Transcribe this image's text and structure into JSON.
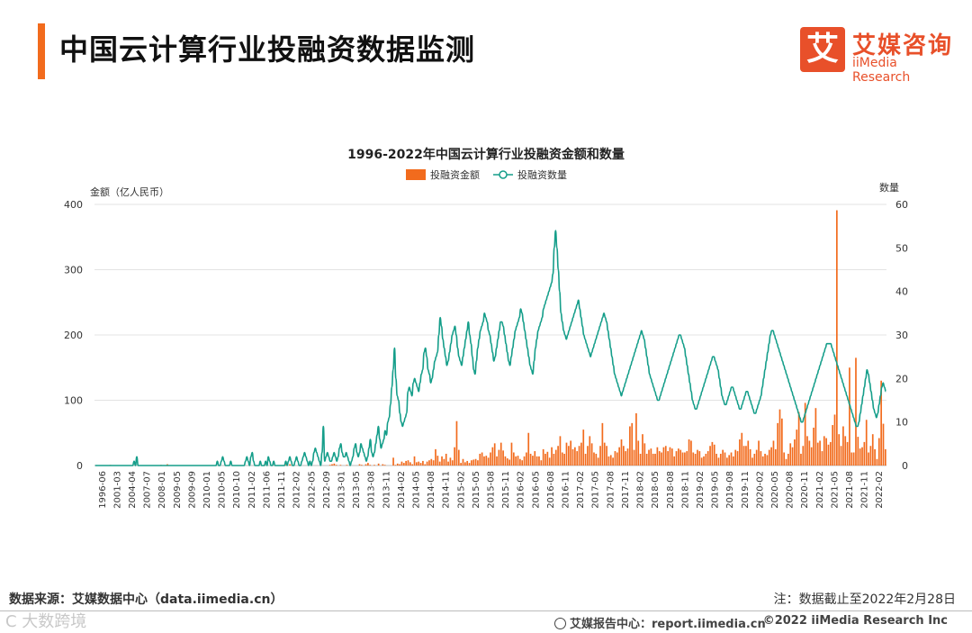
{
  "header": {
    "title": "中国云计算行业投融资数据监测"
  },
  "logo": {
    "mark": "艾",
    "cn": "艾媒咨询",
    "en": "iiMedia Research"
  },
  "colors": {
    "accent": "#f26b1d",
    "bar": "#f26b1d",
    "line": "#159e8a",
    "grid": "#e3e3e3"
  },
  "chart_data": {
    "type": "bar+line",
    "title": "1996-2022年中国云计算行业投融资金额和数量",
    "ylabel_left": "金额（亿人民币）",
    "ylabel_right": "数量",
    "ylim_left": [
      0,
      400
    ],
    "ylim_right": [
      0,
      60
    ],
    "yticks_left": [
      "0",
      "100",
      "200",
      "300",
      "400"
    ],
    "yticks_right": [
      "0",
      "10",
      "20",
      "30",
      "40",
      "50",
      "60"
    ],
    "legend": [
      "投融资金额",
      "投融资数量"
    ],
    "x_tick_labels": [
      "1996-06",
      "2001-03",
      "2004-04",
      "2007-07",
      "2008-01",
      "2009-05",
      "2009-09",
      "2010-01",
      "2010-05",
      "2010-10",
      "2011-02",
      "2011-06",
      "2011-11",
      "2012-02",
      "2012-05",
      "2012-09",
      "2013-01",
      "2013-05",
      "2013-08",
      "2013-11",
      "2014-02",
      "2014-05",
      "2014-08",
      "2014-11",
      "2015-02",
      "2015-05",
      "2015-08",
      "2015-11",
      "2016-02",
      "2016-05",
      "2016-08",
      "2016-11",
      "2017-02",
      "2017-05",
      "2017-08",
      "2017-11",
      "2018-02",
      "2018-05",
      "2018-08",
      "2018-11",
      "2019-02",
      "2019-05",
      "2019-08",
      "2019-11",
      "2020-02",
      "2020-05",
      "2020-08",
      "2020-11",
      "2021-02",
      "2021-05",
      "2021-08",
      "2021-11",
      "2022-02"
    ],
    "series": [
      {
        "name": "投融资金额",
        "axis": "left",
        "values": [
          0,
          0,
          0,
          0,
          0,
          0,
          0,
          1,
          0,
          0,
          0,
          0,
          0,
          0,
          0,
          0,
          0,
          0,
          0,
          0,
          0,
          0,
          0,
          0,
          0,
          0,
          0,
          0,
          0,
          0,
          0,
          1,
          0,
          0,
          2,
          0,
          0,
          0,
          0,
          0,
          0,
          0,
          0,
          0,
          0,
          0,
          0,
          0,
          0,
          0,
          0,
          0,
          0,
          0,
          0,
          0,
          0,
          0,
          0,
          0,
          0,
          0,
          0,
          0,
          0,
          0,
          0,
          0,
          0,
          0,
          0,
          0,
          0,
          0,
          0,
          0,
          0,
          0,
          0,
          0,
          1,
          0,
          0,
          0,
          0,
          0,
          0,
          0,
          0,
          0,
          1,
          0,
          2,
          1,
          0,
          0,
          0,
          0,
          0,
          0,
          0,
          0,
          0,
          0,
          0,
          0,
          0,
          0,
          0,
          0,
          0,
          1,
          2,
          3,
          1,
          0,
          1,
          0,
          0,
          1,
          0,
          0,
          0,
          0,
          0,
          2,
          1,
          0,
          2,
          4,
          1,
          0,
          1,
          0,
          3,
          0,
          2,
          1,
          0,
          0,
          0,
          12,
          1,
          3,
          2,
          6,
          4,
          7,
          8,
          5,
          2,
          14,
          5,
          6,
          4,
          7,
          2,
          6,
          8,
          10,
          8,
          25,
          15,
          6,
          14,
          10,
          18,
          6,
          12,
          8,
          28,
          68,
          24,
          4,
          10,
          5,
          7,
          4,
          8,
          9,
          10,
          8,
          18,
          20,
          14,
          15,
          12,
          20,
          28,
          34,
          14,
          24,
          35,
          23,
          14,
          11,
          9,
          35,
          20,
          14,
          15,
          10,
          8,
          14,
          20,
          50,
          18,
          15,
          22,
          14,
          14,
          8,
          25,
          18,
          21,
          12,
          28,
          18,
          24,
          30,
          45,
          20,
          18,
          35,
          30,
          38,
          25,
          28,
          22,
          30,
          35,
          55,
          18,
          30,
          45,
          34,
          20,
          18,
          12,
          30,
          65,
          35,
          30,
          14,
          16,
          12,
          22,
          20,
          28,
          40,
          30,
          22,
          26,
          60,
          65,
          24,
          80,
          38,
          18,
          48,
          34,
          18,
          24,
          26,
          18,
          18,
          28,
          22,
          20,
          28,
          30,
          22,
          28,
          26,
          14,
          22,
          26,
          24,
          20,
          20,
          22,
          40,
          38,
          20,
          18,
          24,
          22,
          12,
          14,
          18,
          22,
          30,
          36,
          32,
          18,
          12,
          18,
          24,
          20,
          12,
          16,
          20,
          14,
          24,
          22,
          40,
          50,
          30,
          30,
          38,
          25,
          12,
          18,
          24,
          38,
          22,
          14,
          18,
          16,
          24,
          28,
          38,
          25,
          65,
          86,
          72,
          20,
          10,
          18,
          34,
          28,
          40,
          55,
          82,
          18,
          30,
          96,
          45,
          38,
          28,
          58,
          88,
          35,
          38,
          22,
          45,
          42,
          32,
          36,
          62,
          78,
          391,
          48,
          30,
          60,
          45,
          36,
          150,
          20,
          20,
          165,
          44,
          26,
          28,
          36,
          70,
          20,
          30,
          48,
          25,
          10,
          42,
          130,
          64,
          25
        ]
      },
      {
        "name": "投融资数量",
        "axis": "right",
        "values": [
          0,
          0,
          0,
          0,
          0,
          0,
          0,
          0,
          0,
          0,
          0,
          0,
          0,
          0,
          0,
          0,
          0,
          0,
          0,
          0,
          0,
          0,
          0,
          0,
          0,
          0,
          0,
          0,
          0,
          1,
          0,
          2,
          0,
          0,
          0,
          0,
          0,
          0,
          0,
          0,
          0,
          0,
          0,
          0,
          0,
          0,
          0,
          0,
          0,
          0,
          0,
          0,
          0,
          0,
          0,
          0,
          0,
          0,
          0,
          0,
          0,
          0,
          0,
          0,
          0,
          0,
          0,
          0,
          0,
          0,
          0,
          0,
          0,
          0,
          0,
          0,
          0,
          0,
          0,
          0,
          0,
          0,
          0,
          0,
          0,
          0,
          0,
          0,
          0,
          0,
          0,
          1,
          0,
          0,
          1,
          2,
          1,
          0,
          0,
          0,
          0,
          1,
          0,
          0,
          0,
          0,
          0,
          0,
          0,
          0,
          0,
          0,
          1,
          2,
          1,
          0,
          2,
          3,
          1,
          0,
          0,
          0,
          0,
          1,
          0,
          0,
          0,
          1,
          0,
          2,
          1,
          0,
          0,
          1,
          0,
          0,
          0,
          0,
          0,
          0,
          0,
          0,
          1,
          0,
          1,
          2,
          1,
          0,
          0,
          1,
          2,
          1,
          0,
          0,
          1,
          2,
          3,
          2,
          1,
          0,
          1,
          0,
          1,
          3,
          4,
          3,
          2,
          1,
          0,
          3,
          9,
          1,
          2,
          3,
          2,
          1,
          1,
          2,
          3,
          2,
          1,
          2,
          4,
          5,
          3,
          2,
          2,
          3,
          2,
          1,
          0,
          1,
          2,
          4,
          5,
          3,
          2,
          3,
          5,
          4,
          3,
          2,
          1,
          2,
          4,
          6,
          3,
          2,
          3,
          5,
          7,
          9,
          6,
          4,
          5,
          6,
          8,
          7,
          10,
          11,
          14,
          18,
          22,
          27,
          20,
          16,
          15,
          12,
          10,
          9,
          10,
          11,
          12,
          17,
          18,
          17,
          16,
          19,
          20,
          19,
          18,
          17,
          19,
          21,
          22,
          26,
          27,
          25,
          22,
          21,
          19,
          20,
          22,
          24,
          25,
          26,
          30,
          34,
          32,
          29,
          27,
          25,
          23,
          24,
          26,
          28,
          30,
          31,
          32,
          30,
          27,
          25,
          24,
          23,
          25,
          27,
          29,
          31,
          33,
          30,
          28,
          25,
          22,
          21,
          24,
          27,
          29,
          31,
          32,
          33,
          35,
          34,
          33,
          31,
          30,
          28,
          26,
          24,
          25,
          27,
          29,
          31,
          33,
          33,
          32,
          30,
          28,
          26,
          24,
          23,
          25,
          27,
          29,
          31,
          32,
          33,
          34,
          36,
          35,
          33,
          31,
          29,
          27,
          25,
          23,
          22,
          21,
          24,
          27,
          29,
          31,
          32,
          33,
          34,
          36,
          37,
          38,
          39,
          40,
          41,
          42,
          44,
          50,
          54,
          50,
          45,
          40,
          35,
          33,
          31,
          30,
          29,
          30,
          31,
          32,
          33,
          34,
          35,
          36,
          37,
          38,
          36,
          34,
          32,
          30,
          29,
          28,
          27,
          26,
          25,
          26,
          27,
          28,
          29,
          30,
          31,
          32,
          33,
          34,
          35,
          34,
          33,
          31,
          29,
          27,
          25,
          23,
          21,
          20,
          19,
          18,
          17,
          16,
          17,
          18,
          19,
          20,
          21,
          22,
          23,
          24,
          25,
          26,
          27,
          28,
          29,
          30,
          31,
          30,
          29,
          27,
          25,
          23,
          21,
          20,
          19,
          18,
          17,
          16,
          15,
          15,
          16,
          17,
          18,
          19,
          20,
          21,
          22,
          23,
          24,
          25,
          26,
          27,
          28,
          29,
          30,
          30,
          29,
          28,
          27,
          25,
          23,
          21,
          19,
          17,
          15,
          14,
          13,
          13,
          14,
          15,
          16,
          17,
          18,
          19,
          20,
          21,
          22,
          23,
          24,
          25,
          25,
          24,
          23,
          22,
          20,
          18,
          16,
          15,
          14,
          14,
          15,
          16,
          17,
          18,
          18,
          17,
          16,
          15,
          14,
          13,
          13,
          14,
          15,
          16,
          17,
          17,
          16,
          15,
          14,
          13,
          12,
          12,
          13,
          14,
          15,
          16,
          18,
          20,
          22,
          24,
          26,
          28,
          30,
          31,
          31,
          30,
          29,
          28,
          27,
          26,
          25,
          24,
          23,
          22,
          21,
          20,
          19,
          18,
          17,
          16,
          15,
          14,
          13,
          12,
          11,
          10,
          10,
          11,
          12,
          13,
          14,
          15,
          16,
          17,
          18,
          19,
          20,
          21,
          22,
          23,
          24,
          25,
          26,
          27,
          28,
          28,
          28,
          28,
          27,
          26,
          25,
          24,
          23,
          22,
          21,
          20,
          19,
          18,
          17,
          16,
          15,
          14,
          13,
          12,
          11,
          10,
          9,
          9,
          10,
          12,
          14,
          16,
          18,
          20,
          22,
          21,
          19,
          17,
          15,
          13,
          12,
          11,
          12,
          14,
          16,
          18,
          19,
          18,
          17
        ]
      }
    ]
  },
  "footer": {
    "source": "数据来源：艾媒数据中心（data.iimedia.cn）",
    "note": "注：数据截止至2022年2月28日",
    "report": "艾媒报告中心：report.iimedia.cn",
    "copyright": "©2022 iiMedia Research Inc",
    "watermark": "C 大数跨境"
  }
}
